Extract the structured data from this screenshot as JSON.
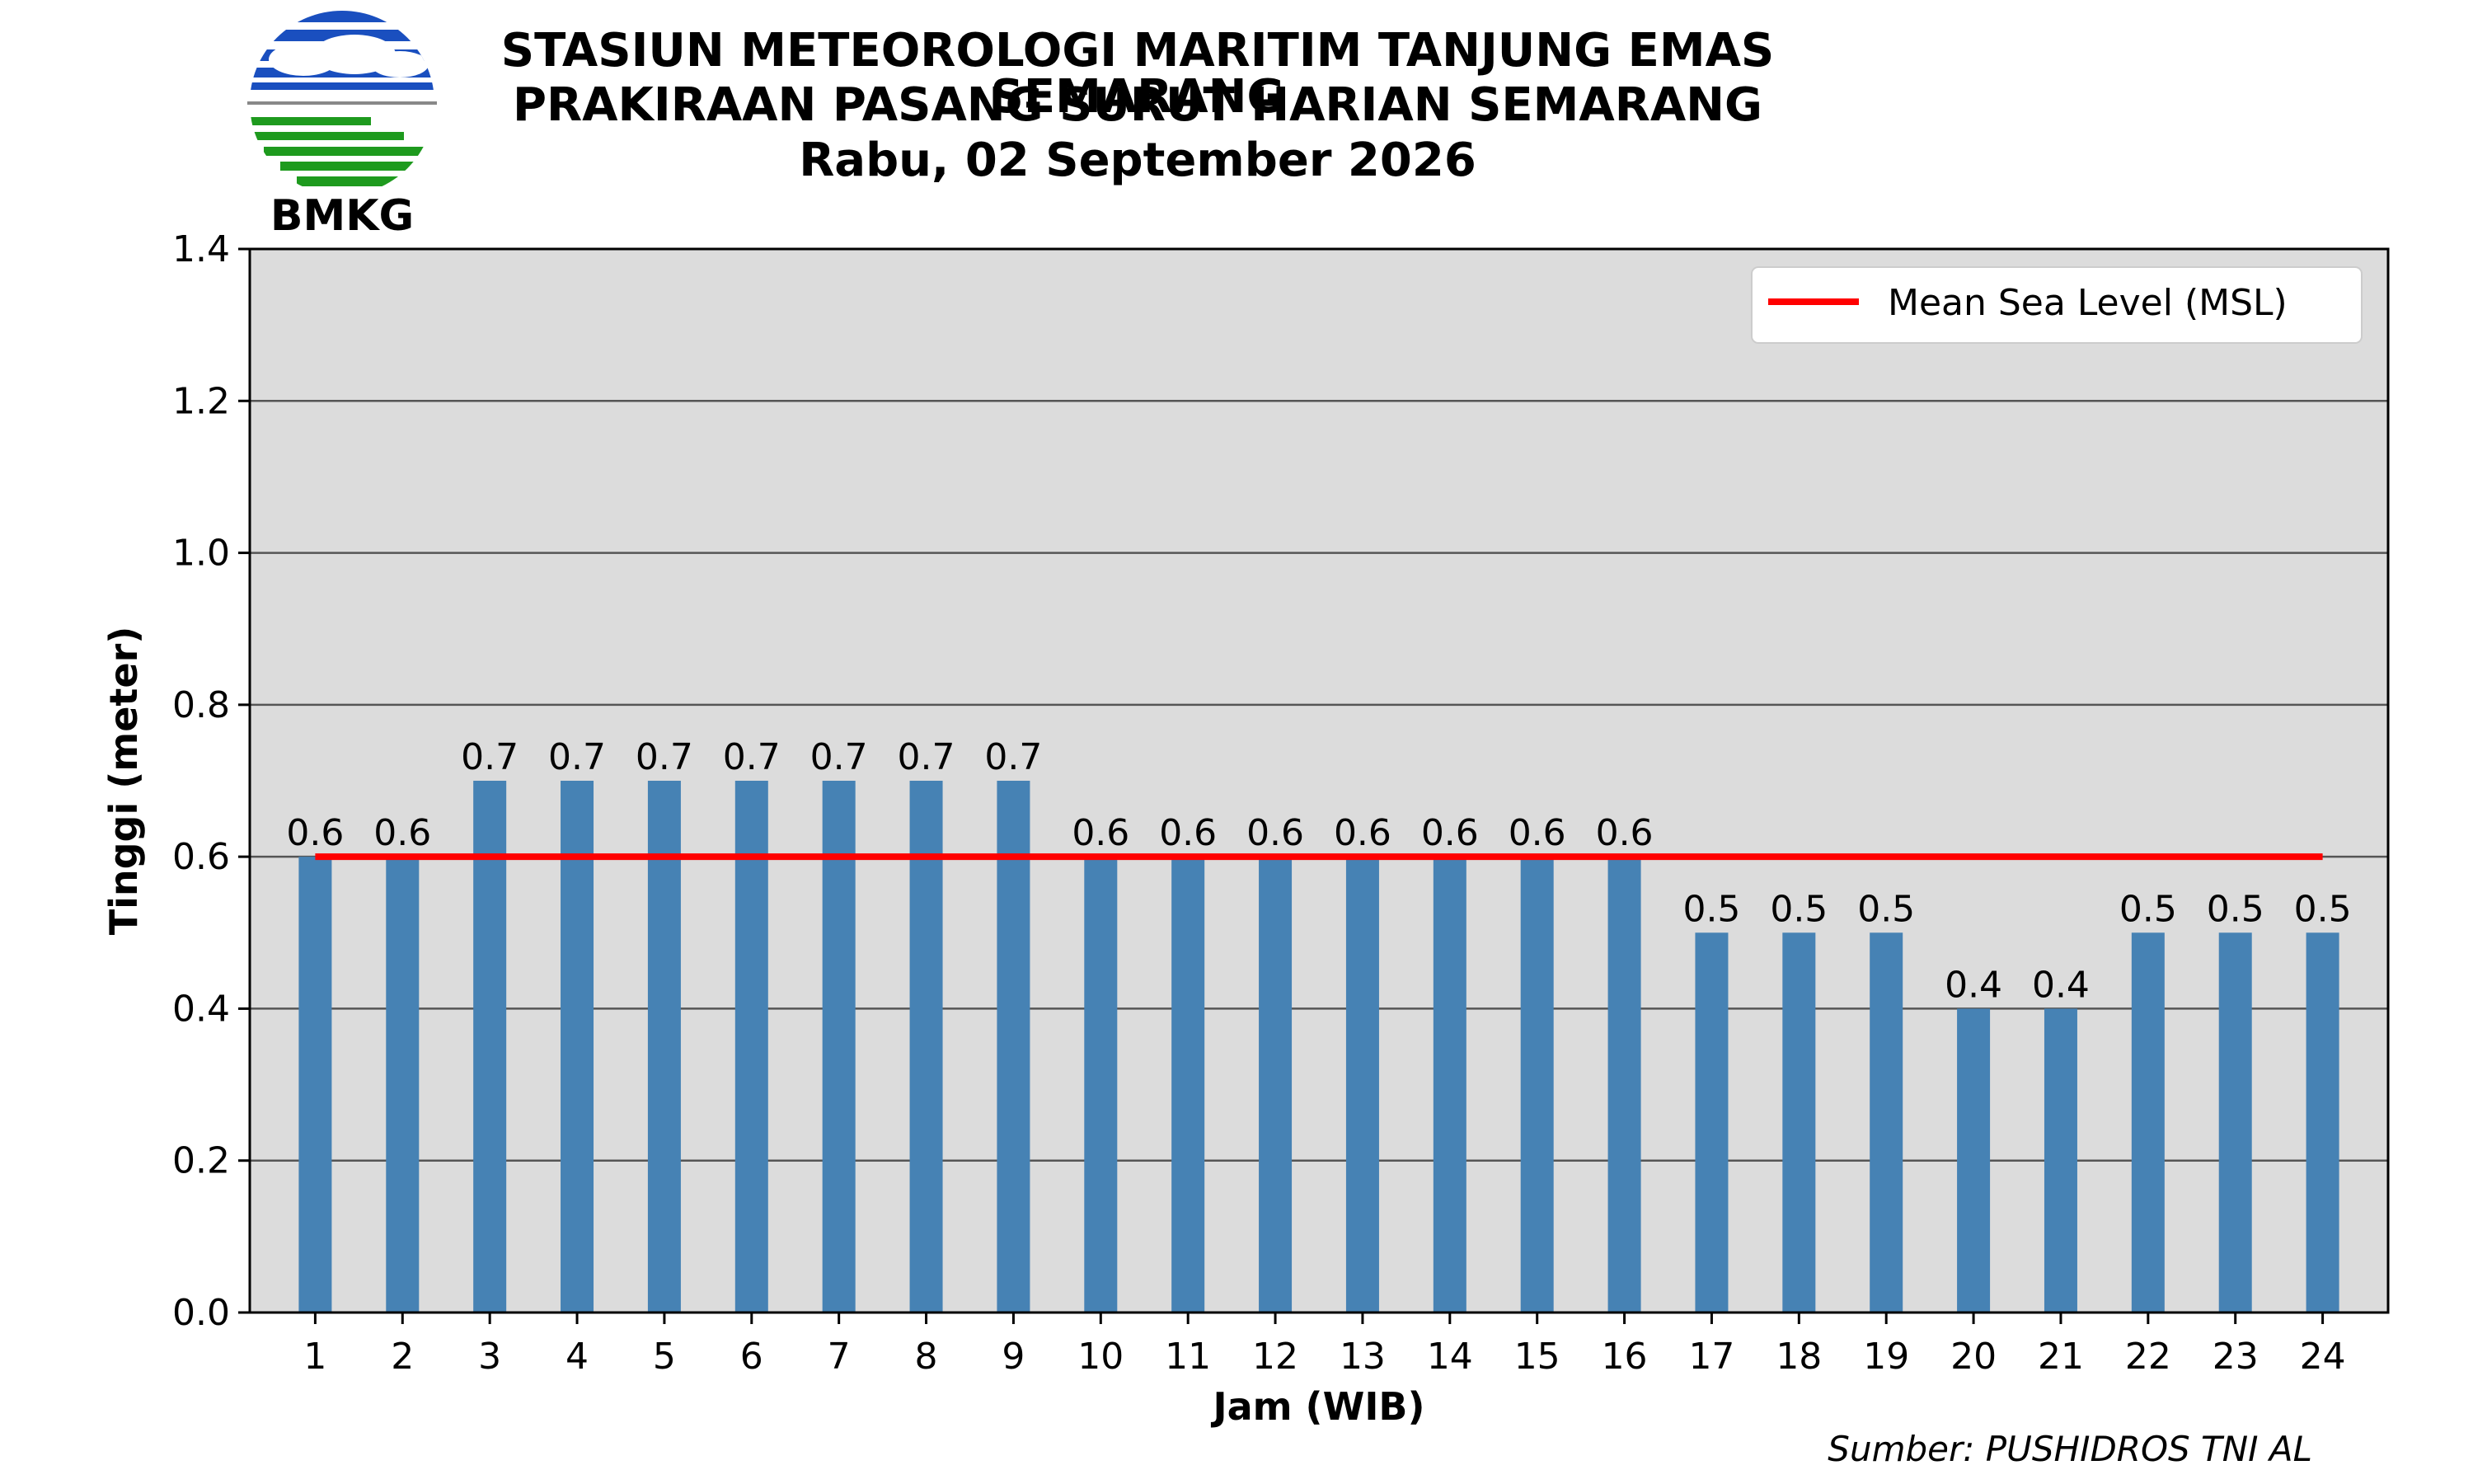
{
  "logo": {
    "text": "BMKG",
    "colors": {
      "blue": "#1a4fbf",
      "green": "#1e9a1e",
      "gray": "#888888"
    }
  },
  "header": {
    "title_line1": "STASIUN METEOROLOGI MARITIM TANJUNG EMAS SEMARANG",
    "title_line2": "PRAKIRAAN PASANG SURUT HARIAN SEMARANG",
    "title_line3": "Rabu, 02 September 2026"
  },
  "footer": {
    "source": "Sumber: PUSHIDROS TNI AL"
  },
  "chart_data": {
    "type": "bar",
    "categories": [
      "1",
      "2",
      "3",
      "4",
      "5",
      "6",
      "7",
      "8",
      "9",
      "10",
      "11",
      "12",
      "13",
      "14",
      "15",
      "16",
      "17",
      "18",
      "19",
      "20",
      "21",
      "22",
      "23",
      "24"
    ],
    "values": [
      0.6,
      0.6,
      0.7,
      0.7,
      0.7,
      0.7,
      0.7,
      0.7,
      0.7,
      0.6,
      0.6,
      0.6,
      0.6,
      0.6,
      0.6,
      0.6,
      0.5,
      0.5,
      0.5,
      0.4,
      0.4,
      0.5,
      0.5,
      0.5
    ],
    "value_labels": [
      "0.6",
      "0.6",
      "0.7",
      "0.7",
      "0.7",
      "0.7",
      "0.7",
      "0.7",
      "0.7",
      "0.6",
      "0.6",
      "0.6",
      "0.6",
      "0.6",
      "0.6",
      "0.6",
      "0.5",
      "0.5",
      "0.5",
      "0.4",
      "0.4",
      "0.5",
      "0.5",
      "0.5"
    ],
    "xlabel": "Jam (WIB)",
    "ylabel": "Tinggi (meter)",
    "ylim": [
      0,
      1.4
    ],
    "yticks": [
      "0.0",
      "0.2",
      "0.4",
      "0.6",
      "0.8",
      "1.0",
      "1.2",
      "1.4"
    ],
    "ytick_values": [
      0,
      0.2,
      0.4,
      0.6,
      0.8,
      1.0,
      1.2,
      1.4
    ],
    "msl": {
      "name": "Mean Sea Level (MSL)",
      "value": 0.6,
      "color": "#ff0000"
    },
    "legend_position": "top-right",
    "grid": "horizontal",
    "bar_color": "#4682b4",
    "background_color": "#dcdcdc"
  }
}
